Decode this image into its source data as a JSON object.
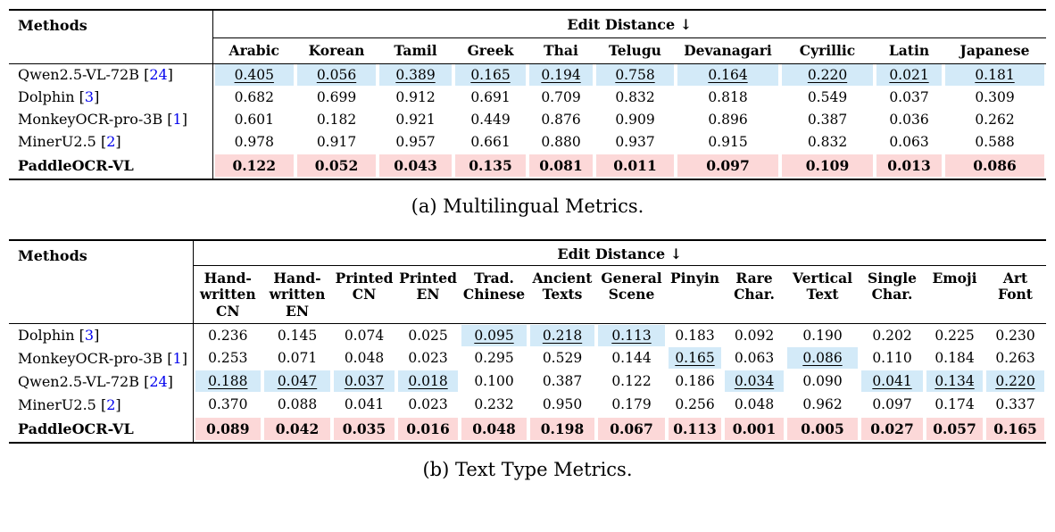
{
  "colors": {
    "highlight_blue": "#d3eaf8",
    "highlight_pink": "#fcd8d8",
    "citation_blue": "#0000ee"
  },
  "tables": [
    {
      "caption": "(a) Multilingual Metrics.",
      "methods_header": "Methods",
      "group_header": "Edit Distance ↓",
      "columns": [
        "Arabic",
        "Korean",
        "Tamil",
        "Greek",
        "Thai",
        "Telugu",
        "Devanagari",
        "Cyrillic",
        "Latin",
        "Japanese"
      ],
      "rows": [
        {
          "method": "Qwen2.5-VL-72B",
          "cite": "24",
          "cells": [
            {
              "v": "0.405",
              "hl": "blue",
              "ul": true
            },
            {
              "v": "0.056",
              "hl": "blue",
              "ul": true
            },
            {
              "v": "0.389",
              "hl": "blue",
              "ul": true
            },
            {
              "v": "0.165",
              "hl": "blue",
              "ul": true
            },
            {
              "v": "0.194",
              "hl": "blue",
              "ul": true
            },
            {
              "v": "0.758",
              "hl": "blue",
              "ul": true
            },
            {
              "v": "0.164",
              "hl": "blue",
              "ul": true
            },
            {
              "v": "0.220",
              "hl": "blue",
              "ul": true
            },
            {
              "v": "0.021",
              "hl": "blue",
              "ul": true
            },
            {
              "v": "0.181",
              "hl": "blue",
              "ul": true
            }
          ]
        },
        {
          "method": "Dolphin",
          "cite": "3",
          "cells": [
            {
              "v": "0.682"
            },
            {
              "v": "0.699"
            },
            {
              "v": "0.912"
            },
            {
              "v": "0.691"
            },
            {
              "v": "0.709"
            },
            {
              "v": "0.832"
            },
            {
              "v": "0.818"
            },
            {
              "v": "0.549"
            },
            {
              "v": "0.037"
            },
            {
              "v": "0.309"
            }
          ]
        },
        {
          "method": "MonkeyOCR-pro-3B",
          "cite": "1",
          "cells": [
            {
              "v": "0.601"
            },
            {
              "v": "0.182"
            },
            {
              "v": "0.921"
            },
            {
              "v": "0.449"
            },
            {
              "v": "0.876"
            },
            {
              "v": "0.909"
            },
            {
              "v": "0.896"
            },
            {
              "v": "0.387"
            },
            {
              "v": "0.036"
            },
            {
              "v": "0.262"
            }
          ]
        },
        {
          "method": "MinerU2.5",
          "cite": "2",
          "cells": [
            {
              "v": "0.978"
            },
            {
              "v": "0.917"
            },
            {
              "v": "0.957"
            },
            {
              "v": "0.661"
            },
            {
              "v": "0.880"
            },
            {
              "v": "0.937"
            },
            {
              "v": "0.915"
            },
            {
              "v": "0.832"
            },
            {
              "v": "0.063"
            },
            {
              "v": "0.588"
            }
          ]
        },
        {
          "method": "PaddleOCR-VL",
          "cite": null,
          "bold": true,
          "cells": [
            {
              "v": "0.122",
              "hl": "pink",
              "b": true
            },
            {
              "v": "0.052",
              "hl": "pink",
              "b": true
            },
            {
              "v": "0.043",
              "hl": "pink",
              "b": true
            },
            {
              "v": "0.135",
              "hl": "pink",
              "b": true
            },
            {
              "v": "0.081",
              "hl": "pink",
              "b": true
            },
            {
              "v": "0.011",
              "hl": "pink",
              "b": true
            },
            {
              "v": "0.097",
              "hl": "pink",
              "b": true
            },
            {
              "v": "0.109",
              "hl": "pink",
              "b": true
            },
            {
              "v": "0.013",
              "hl": "pink",
              "b": true
            },
            {
              "v": "0.086",
              "hl": "pink",
              "b": true
            }
          ]
        }
      ]
    },
    {
      "caption": "(b) Text Type Metrics.",
      "methods_header": "Methods",
      "group_header": "Edit Distance ↓",
      "columns": [
        "Hand-\nwritten\nCN",
        "Hand-\nwritten\nEN",
        "Printed\nCN",
        "Printed\nEN",
        "Trad.\nChinese",
        "Ancient\nTexts",
        "General\nScene",
        "Pinyin",
        "Rare\nChar.",
        "Vertical\nText",
        "Single\nChar.",
        "Emoji",
        "Art\nFont"
      ],
      "rows": [
        {
          "method": "Dolphin",
          "cite": "3",
          "cells": [
            {
              "v": "0.236"
            },
            {
              "v": "0.145"
            },
            {
              "v": "0.074"
            },
            {
              "v": "0.025"
            },
            {
              "v": "0.095",
              "hl": "blue",
              "ul": true
            },
            {
              "v": "0.218",
              "hl": "blue",
              "ul": true
            },
            {
              "v": "0.113",
              "hl": "blue",
              "ul": true
            },
            {
              "v": "0.183"
            },
            {
              "v": "0.092"
            },
            {
              "v": "0.190"
            },
            {
              "v": "0.202"
            },
            {
              "v": "0.225"
            },
            {
              "v": "0.230"
            }
          ]
        },
        {
          "method": "MonkeyOCR-pro-3B",
          "cite": "1",
          "cells": [
            {
              "v": "0.253"
            },
            {
              "v": "0.071"
            },
            {
              "v": "0.048"
            },
            {
              "v": "0.023"
            },
            {
              "v": "0.295"
            },
            {
              "v": "0.529"
            },
            {
              "v": "0.144"
            },
            {
              "v": "0.165",
              "hl": "blue",
              "ul": true
            },
            {
              "v": "0.063"
            },
            {
              "v": "0.086",
              "hl": "blue",
              "ul": true
            },
            {
              "v": "0.110"
            },
            {
              "v": "0.184"
            },
            {
              "v": "0.263"
            }
          ]
        },
        {
          "method": "Qwen2.5-VL-72B",
          "cite": "24",
          "cells": [
            {
              "v": "0.188",
              "hl": "blue",
              "ul": true
            },
            {
              "v": "0.047",
              "hl": "blue",
              "ul": true
            },
            {
              "v": "0.037",
              "hl": "blue",
              "ul": true
            },
            {
              "v": "0.018",
              "hl": "blue",
              "ul": true
            },
            {
              "v": "0.100"
            },
            {
              "v": "0.387"
            },
            {
              "v": "0.122"
            },
            {
              "v": "0.186"
            },
            {
              "v": "0.034",
              "hl": "blue",
              "ul": true
            },
            {
              "v": "0.090"
            },
            {
              "v": "0.041",
              "hl": "blue",
              "ul": true
            },
            {
              "v": "0.134",
              "hl": "blue",
              "ul": true
            },
            {
              "v": "0.220",
              "hl": "blue",
              "ul": true
            }
          ]
        },
        {
          "method": "MinerU2.5",
          "cite": "2",
          "cells": [
            {
              "v": "0.370"
            },
            {
              "v": "0.088"
            },
            {
              "v": "0.041"
            },
            {
              "v": "0.023"
            },
            {
              "v": "0.232"
            },
            {
              "v": "0.950"
            },
            {
              "v": "0.179"
            },
            {
              "v": "0.256"
            },
            {
              "v": "0.048"
            },
            {
              "v": "0.962"
            },
            {
              "v": "0.097"
            },
            {
              "v": "0.174"
            },
            {
              "v": "0.337"
            }
          ]
        },
        {
          "method": "PaddleOCR-VL",
          "cite": null,
          "bold": true,
          "cells": [
            {
              "v": "0.089",
              "hl": "pink",
              "b": true
            },
            {
              "v": "0.042",
              "hl": "pink",
              "b": true
            },
            {
              "v": "0.035",
              "hl": "pink",
              "b": true
            },
            {
              "v": "0.016",
              "hl": "pink",
              "b": true
            },
            {
              "v": "0.048",
              "hl": "pink",
              "b": true
            },
            {
              "v": "0.198",
              "hl": "pink",
              "b": true
            },
            {
              "v": "0.067",
              "hl": "pink",
              "b": true
            },
            {
              "v": "0.113",
              "hl": "pink",
              "b": true
            },
            {
              "v": "0.001",
              "hl": "pink",
              "b": true
            },
            {
              "v": "0.005",
              "hl": "pink",
              "b": true
            },
            {
              "v": "0.027",
              "hl": "pink",
              "b": true
            },
            {
              "v": "0.057",
              "hl": "pink",
              "b": true
            },
            {
              "v": "0.165",
              "hl": "pink",
              "b": true
            }
          ]
        }
      ]
    }
  ]
}
